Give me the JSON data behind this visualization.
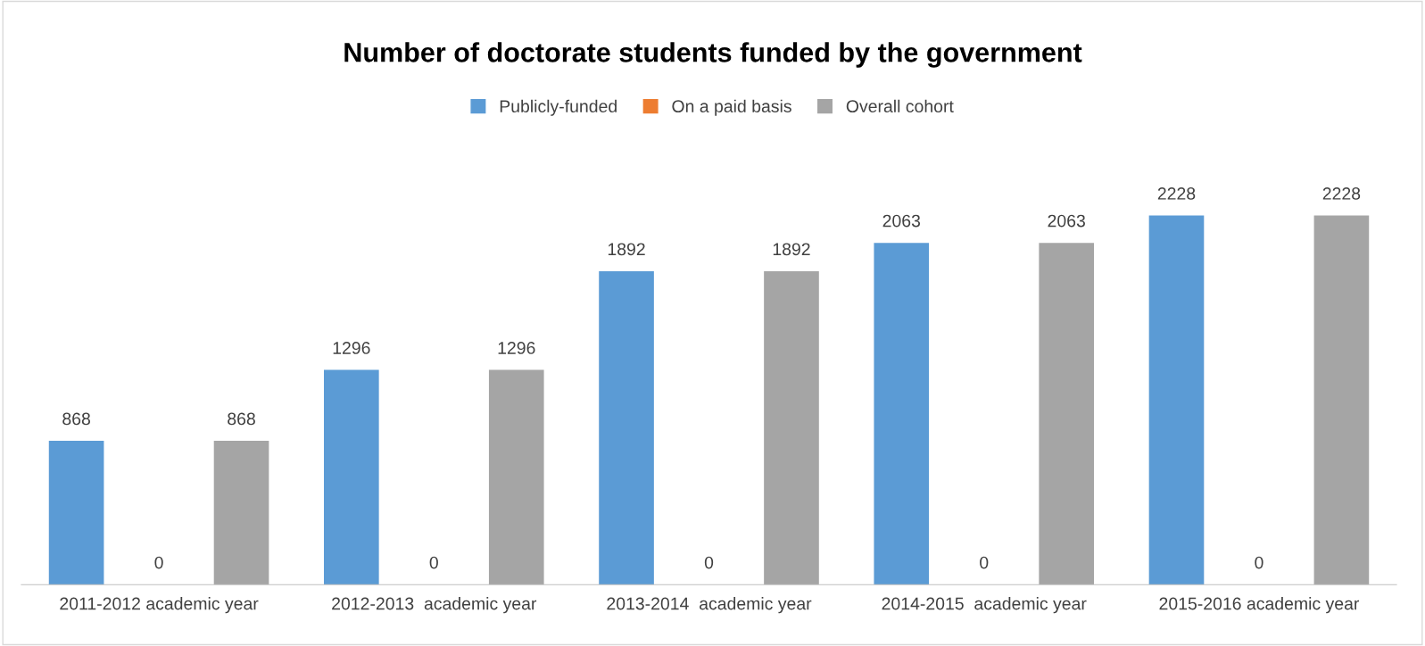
{
  "chart_data": {
    "type": "bar",
    "title": "Number of doctorate students funded by the government",
    "categories": [
      "2011-2012 academic year",
      "2012-2013  academic year",
      "2013-2014  academic year",
      "2014-2015  academic year",
      "2015-2016 academic year"
    ],
    "series": [
      {
        "name": "Publicly-funded",
        "color": "#5b9bd5",
        "values": [
          868,
          1296,
          1892,
          2063,
          2228
        ]
      },
      {
        "name": "On a paid basis",
        "color": "#ed7d31",
        "values": [
          0,
          0,
          0,
          0,
          0
        ]
      },
      {
        "name": "Overall cohort",
        "color": "#a5a5a5",
        "values": [
          868,
          1296,
          1892,
          2063,
          2228
        ]
      }
    ],
    "data_labels": true,
    "legend": "top",
    "grid": false,
    "tick_labels": "x"
  }
}
